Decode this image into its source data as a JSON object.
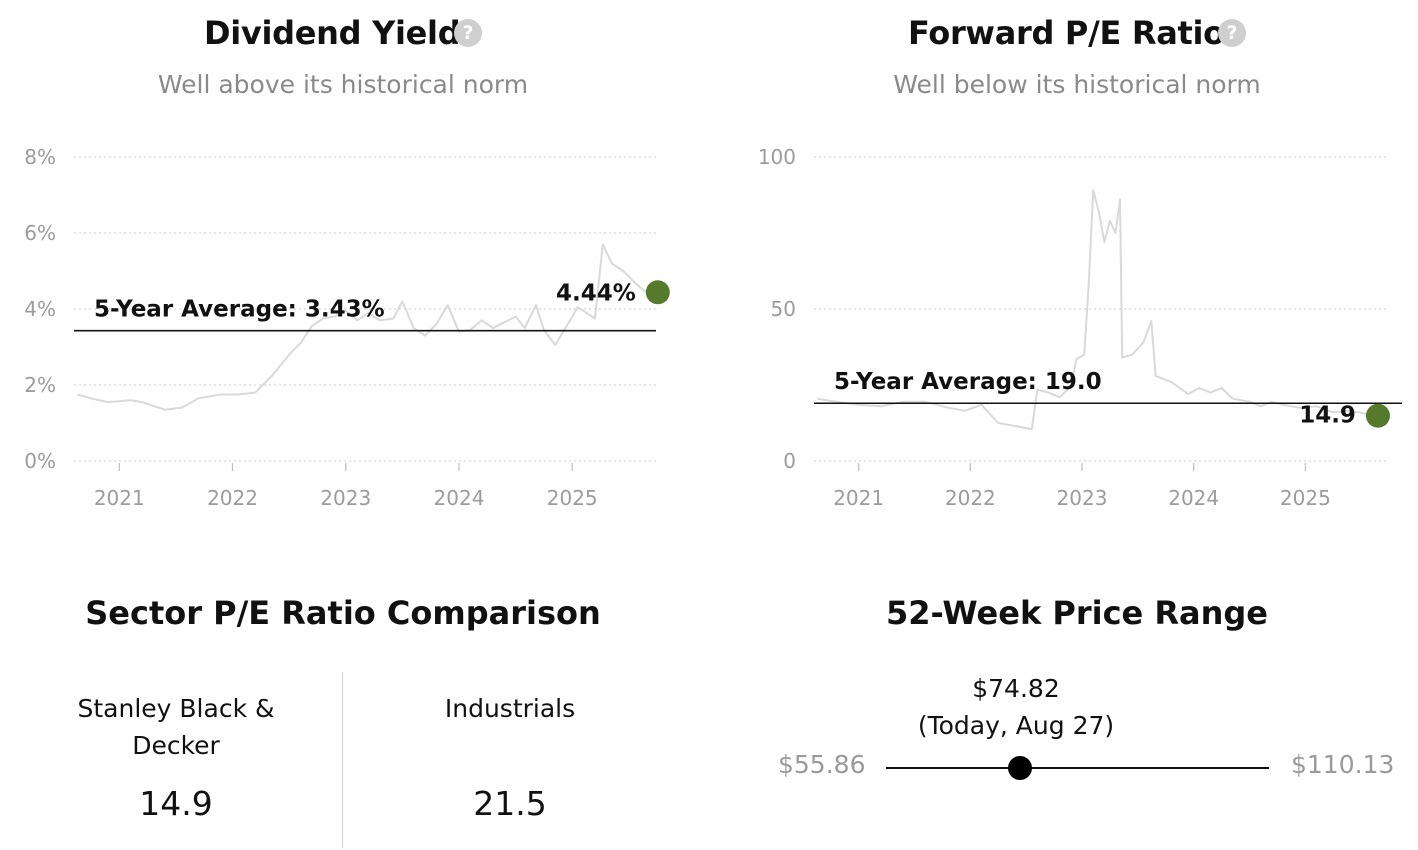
{
  "dividend": {
    "title": "Dividend Yield",
    "subtitle": "Well above its historical norm",
    "avg_label": "5-Year Average: 3.43%",
    "current_label": "4.44%"
  },
  "pe": {
    "title": "Forward P/E Ratio",
    "subtitle": "Well below its historical norm",
    "avg_label": "5-Year Average: 19.0",
    "current_label": "14.9"
  },
  "sector": {
    "title": "Sector P/E Ratio Comparison",
    "company_name": "Stanley Black & Decker",
    "company_value": "14.9",
    "sector_name": "Industrials",
    "sector_value": "21.5"
  },
  "range": {
    "title": "52-Week Price Range",
    "current_price": "$74.82",
    "current_note": "(Today, Aug 27)",
    "low": "$55.86",
    "high": "$110.13",
    "low_value": 55.86,
    "high_value": 110.13,
    "current_value": 74.82
  },
  "chart_data": [
    {
      "type": "line",
      "title": "Dividend Yield",
      "subtitle": "Well above its historical norm",
      "x_ticks": [
        "2021",
        "2022",
        "2023",
        "2024",
        "2025"
      ],
      "y_ticks": [
        "0%",
        "2%",
        "4%",
        "6%",
        "8%"
      ],
      "ylim": [
        0,
        8
      ],
      "xlim": [
        2020.6,
        2025.74
      ],
      "grid": true,
      "series_color": "#d9d9d9",
      "average": 3.43,
      "current": 4.44,
      "current_color": "#557a2b",
      "x": [
        2020.63,
        2020.75,
        2020.9,
        2021.1,
        2021.2,
        2021.4,
        2021.55,
        2021.7,
        2021.9,
        2022.05,
        2022.2,
        2022.35,
        2022.5,
        2022.6,
        2022.7,
        2022.8,
        2022.9,
        2023.0,
        2023.1,
        2023.2,
        2023.3,
        2023.42,
        2023.5,
        2023.6,
        2023.7,
        2023.8,
        2023.9,
        2024.0,
        2024.1,
        2024.2,
        2024.3,
        2024.4,
        2024.5,
        2024.58,
        2024.68,
        2024.75,
        2024.85,
        2024.95,
        2025.05,
        2025.15,
        2025.2,
        2025.27,
        2025.35,
        2025.45,
        2025.55,
        2025.65
      ],
      "y": [
        1.75,
        1.65,
        1.55,
        1.6,
        1.55,
        1.35,
        1.4,
        1.65,
        1.75,
        1.75,
        1.8,
        2.25,
        2.8,
        3.1,
        3.55,
        3.75,
        3.8,
        3.95,
        3.7,
        3.9,
        3.7,
        3.75,
        4.2,
        3.5,
        3.3,
        3.6,
        4.1,
        3.4,
        3.45,
        3.7,
        3.5,
        3.65,
        3.8,
        3.5,
        4.1,
        3.45,
        3.05,
        3.55,
        4.05,
        3.85,
        3.75,
        5.7,
        5.2,
        5.0,
        4.7,
        4.44
      ]
    },
    {
      "type": "line",
      "title": "Forward P/E Ratio",
      "subtitle": "Well below its historical norm",
      "x_ticks": [
        "2021",
        "2022",
        "2023",
        "2024",
        "2025"
      ],
      "y_ticks": [
        "0",
        "50",
        "100"
      ],
      "ylim": [
        0,
        100
      ],
      "xlim": [
        2020.6,
        2025.74
      ],
      "grid": true,
      "series_color": "#d9d9d9",
      "average": 19.0,
      "current": 14.9,
      "current_color": "#557a2b",
      "x": [
        2020.63,
        2020.8,
        2021.0,
        2021.2,
        2021.4,
        2021.6,
        2021.8,
        2021.95,
        2022.1,
        2022.25,
        2022.4,
        2022.55,
        2022.6,
        2022.7,
        2022.8,
        2022.9,
        2022.95,
        2023.02,
        2023.06,
        2023.1,
        2023.15,
        2023.2,
        2023.25,
        2023.3,
        2023.34,
        2023.36,
        2023.45,
        2023.55,
        2023.62,
        2023.66,
        2023.8,
        2023.95,
        2024.05,
        2024.15,
        2024.25,
        2024.35,
        2024.5,
        2024.6,
        2024.7,
        2024.8,
        2024.95,
        2025.1,
        2025.25,
        2025.4,
        2025.55,
        2025.65
      ],
      "y": [
        20.5,
        19.5,
        18.5,
        18.0,
        19.5,
        19.5,
        17.5,
        16.5,
        18.5,
        12.5,
        11.5,
        10.5,
        23.5,
        22.5,
        21.0,
        24.5,
        33.5,
        35.0,
        58.0,
        89.0,
        82.0,
        72.0,
        79.0,
        75.0,
        86.0,
        34.0,
        35.0,
        39.0,
        46.0,
        28.0,
        26.0,
        22.0,
        24.0,
        22.5,
        24.0,
        20.5,
        19.5,
        18.0,
        19.5,
        18.5,
        17.5,
        18.0,
        16.0,
        16.5,
        15.5,
        14.9
      ]
    }
  ]
}
